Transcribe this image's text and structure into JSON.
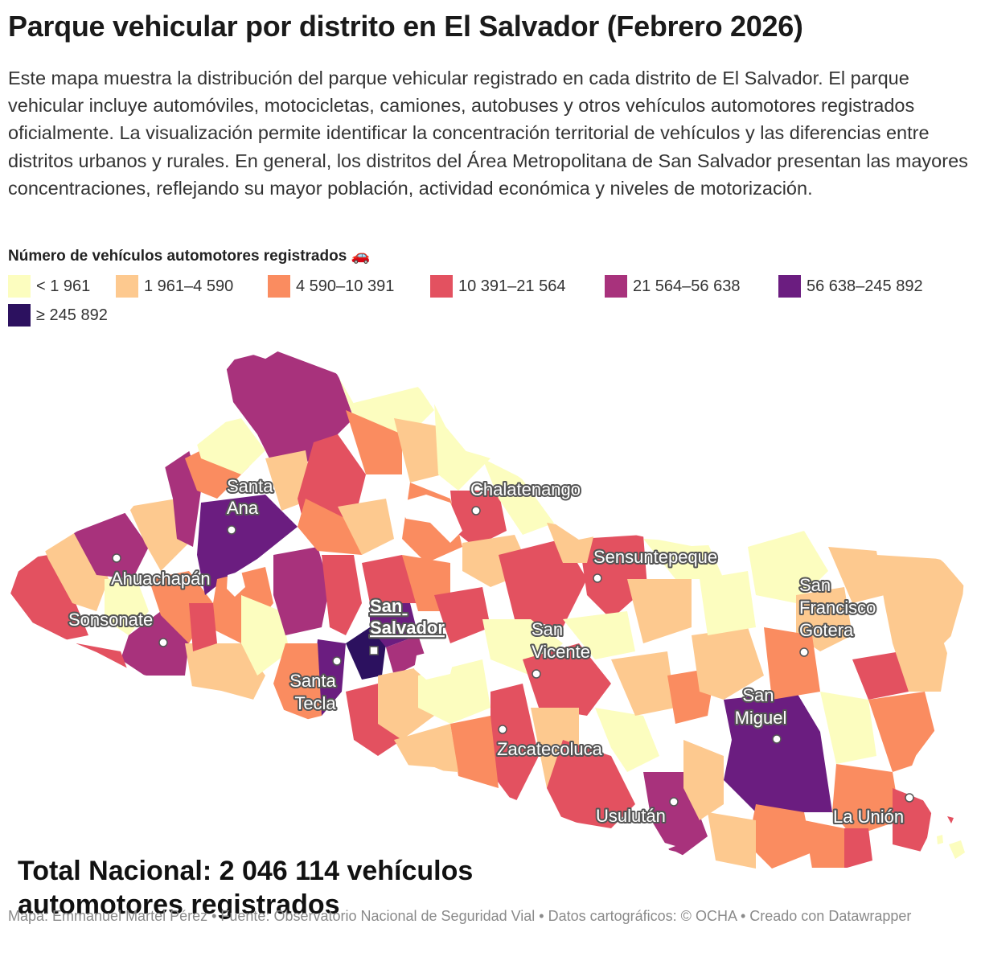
{
  "header": {
    "title": "Parque vehicular por distrito en El Salvador (Febrero 2026)",
    "intro": "Este mapa muestra la distribución del parque vehicular registrado en cada distrito de El Salvador. El parque vehicular incluye automóviles, motocicletas, camiones, autobuses y otros vehículos automotores registrados oficialmente. La visualización permite identificar la concentración territorial de vehículos y las diferencias entre distritos urbanos y rurales. En general, los distritos del Área Metropolitana de San Salvador presentan las mayores concentraciones, reflejando su mayor población, actividad económica y niveles de motorización."
  },
  "legend": {
    "title": "Número de vehículos automotores registrados 🚗",
    "items": [
      {
        "label": "< 1 961",
        "color": "#fcfdbf"
      },
      {
        "label": "1 961–4 590",
        "color": "#fdc98f"
      },
      {
        "label": "4 590–10 391",
        "color": "#fa8c60"
      },
      {
        "label": "10 391–21 564",
        "color": "#e35160"
      },
      {
        "label": "21 564–56 638",
        "color": "#a8327c"
      },
      {
        "label": "56 638–245 892",
        "color": "#6b1d80"
      },
      {
        "label": "≥ 245 892",
        "color": "#2c115f"
      }
    ]
  },
  "map": {
    "cities": [
      {
        "name": "Santa\nAna"
      },
      {
        "name": "Ahuachapán"
      },
      {
        "name": "Sonsonate"
      },
      {
        "name": "Chalatenango"
      },
      {
        "name": "Sensuntepeque"
      },
      {
        "name": "San\nSalvador",
        "capital": true
      },
      {
        "name": "Santa\nTecla"
      },
      {
        "name": "San\nVicente"
      },
      {
        "name": "Zacatecoluca"
      },
      {
        "name": "Usulután"
      },
      {
        "name": "San\nMiguel"
      },
      {
        "name": "San\nFrancisco\nGotera"
      },
      {
        "name": "La Unión"
      }
    ]
  },
  "total": "Total Nacional: 2 046 114 vehículos automotores registrados",
  "footer": "Mapa: Emmanuel Martel Pérez • Fuente: Observatorio Nacional de Seguridad Vial • Datos cartográficos: © OCHA  • Creado con Datawrapper"
}
